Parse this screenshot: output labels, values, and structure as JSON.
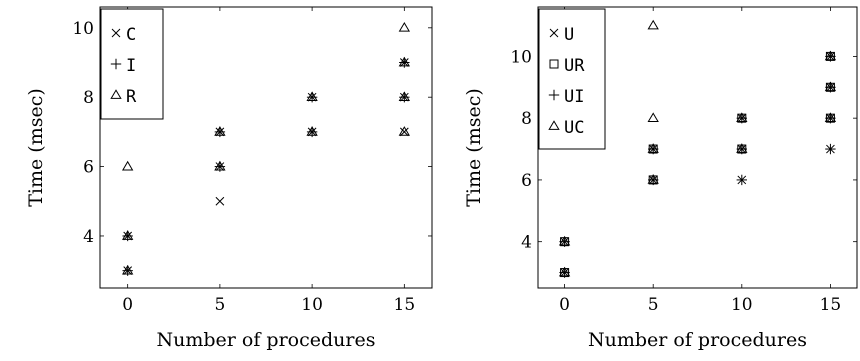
{
  "chart_data": [
    {
      "type": "scatter",
      "xlabel": "Number of procedures",
      "ylabel": "Time (msec)",
      "xlim": [
        -1.5,
        16.5
      ],
      "ylim": [
        2.5,
        10.6
      ],
      "xticks": [
        0,
        5,
        10,
        15
      ],
      "yticks": [
        4,
        6,
        8,
        10
      ],
      "legend_position": "top-left",
      "series": [
        {
          "name": "C",
          "marker": "x",
          "points": [
            [
              0,
              3
            ],
            [
              0,
              4
            ],
            [
              5,
              5
            ],
            [
              5,
              6
            ],
            [
              5,
              7
            ],
            [
              10,
              7
            ],
            [
              10,
              8
            ],
            [
              15,
              7
            ],
            [
              15,
              8
            ],
            [
              15,
              9
            ]
          ]
        },
        {
          "name": "I",
          "marker": "+",
          "points": [
            [
              0,
              3
            ],
            [
              0,
              4
            ],
            [
              5,
              6
            ],
            [
              5,
              7
            ],
            [
              10,
              7
            ],
            [
              10,
              8
            ],
            [
              15,
              8
            ],
            [
              15,
              9
            ]
          ]
        },
        {
          "name": "R",
          "marker": "triangle",
          "points": [
            [
              0,
              3
            ],
            [
              0,
              4
            ],
            [
              0,
              6
            ],
            [
              5,
              6
            ],
            [
              5,
              7
            ],
            [
              10,
              7
            ],
            [
              10,
              8
            ],
            [
              15,
              7
            ],
            [
              15,
              8
            ],
            [
              15,
              9
            ],
            [
              15,
              10
            ]
          ]
        }
      ]
    },
    {
      "type": "scatter",
      "xlabel": "Number of procedures",
      "ylabel": "Time (msec)",
      "xlim": [
        -1.5,
        16.5
      ],
      "ylim": [
        2.5,
        11.6
      ],
      "xticks": [
        0,
        5,
        10,
        15
      ],
      "yticks": [
        4,
        6,
        8,
        10
      ],
      "legend_position": "top-left",
      "series": [
        {
          "name": "U",
          "marker": "x",
          "points": [
            [
              0,
              3
            ],
            [
              0,
              4
            ],
            [
              5,
              6
            ],
            [
              5,
              7
            ],
            [
              10,
              6
            ],
            [
              10,
              7
            ],
            [
              10,
              8
            ],
            [
              15,
              7
            ],
            [
              15,
              8
            ],
            [
              15,
              9
            ],
            [
              15,
              10
            ]
          ]
        },
        {
          "name": "UR",
          "marker": "square",
          "points": [
            [
              0,
              3
            ],
            [
              0,
              4
            ],
            [
              5,
              6
            ],
            [
              5,
              7
            ],
            [
              10,
              7
            ],
            [
              10,
              8
            ],
            [
              15,
              8
            ],
            [
              15,
              9
            ],
            [
              15,
              10
            ]
          ]
        },
        {
          "name": "UI",
          "marker": "+",
          "points": [
            [
              0,
              3
            ],
            [
              0,
              4
            ],
            [
              5,
              6
            ],
            [
              5,
              7
            ],
            [
              10,
              6
            ],
            [
              10,
              7
            ],
            [
              10,
              8
            ],
            [
              15,
              7
            ],
            [
              15,
              8
            ],
            [
              15,
              9
            ],
            [
              15,
              10
            ]
          ]
        },
        {
          "name": "UC",
          "marker": "triangle",
          "points": [
            [
              0,
              3
            ],
            [
              0,
              4
            ],
            [
              5,
              6
            ],
            [
              5,
              7
            ],
            [
              5,
              8
            ],
            [
              5,
              11
            ],
            [
              10,
              7
            ],
            [
              10,
              8
            ],
            [
              15,
              8
            ],
            [
              15,
              9
            ],
            [
              15,
              10
            ]
          ]
        }
      ]
    }
  ]
}
